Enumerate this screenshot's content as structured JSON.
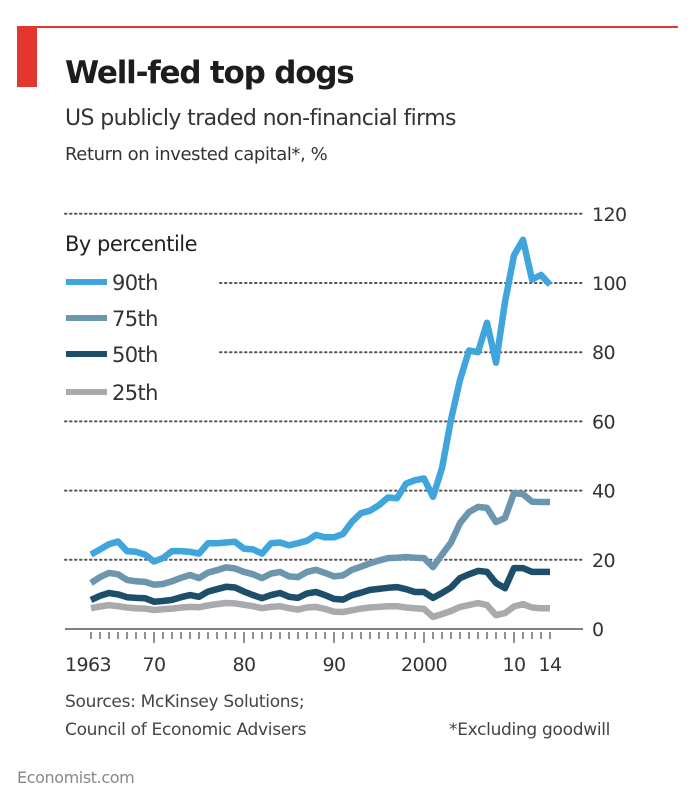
{
  "header": {
    "title": "Well-fed top dogs",
    "subtitle": "US publicly traded non-financial firms",
    "unit": "Return on invested capital*, %"
  },
  "footer": {
    "source_line1": "Sources: McKinsey Solutions;",
    "source_line2": "Council of Economic Advisers",
    "note": "*Excluding goodwill",
    "brand": "Economist.com"
  },
  "colors": {
    "accent": "#e3362e",
    "p90": "#3fa5dc",
    "p75": "#6b96ad",
    "p50": "#1d4e6a",
    "p25": "#a8aaad",
    "grid": "#555555"
  },
  "chart_data": {
    "type": "line",
    "title": "Well-fed top dogs",
    "subtitle": "US publicly traded non-financial firms",
    "ylabel": "Return on invested capital*, %",
    "xlabel": "",
    "xlim": [
      1963,
      2014
    ],
    "ylim": [
      0,
      120
    ],
    "y_ticks": [
      0,
      20,
      40,
      60,
      80,
      100,
      120
    ],
    "x_tick_labels": [
      {
        "year": 1963,
        "label": "1963"
      },
      {
        "year": 1970,
        "label": "70"
      },
      {
        "year": 1980,
        "label": "80"
      },
      {
        "year": 1990,
        "label": "90"
      },
      {
        "year": 2000,
        "label": "2000"
      },
      {
        "year": 2010,
        "label": "10"
      },
      {
        "year": 2014,
        "label": "14"
      }
    ],
    "grid": true,
    "y_axis_side": "right",
    "legend": {
      "title": "By percentile",
      "placement": "top-left"
    },
    "x": [
      1963,
      1964,
      1965,
      1966,
      1967,
      1968,
      1969,
      1970,
      1971,
      1972,
      1973,
      1974,
      1975,
      1976,
      1977,
      1978,
      1979,
      1980,
      1981,
      1982,
      1983,
      1984,
      1985,
      1986,
      1987,
      1988,
      1989,
      1990,
      1991,
      1992,
      1993,
      1994,
      1995,
      1996,
      1997,
      1998,
      1999,
      2000,
      2001,
      2002,
      2003,
      2004,
      2005,
      2006,
      2007,
      2008,
      2009,
      2010,
      2011,
      2012,
      2013,
      2014
    ],
    "series": [
      {
        "name": "90th",
        "color_key": "p90",
        "values": [
          21.5,
          23,
          24.5,
          25.3,
          22.5,
          22.3,
          21.5,
          19.5,
          20.5,
          22.5,
          22.5,
          22.3,
          21.8,
          24.8,
          24.8,
          25,
          25.2,
          23.2,
          23,
          21.8,
          24.8,
          25,
          24.2,
          24.8,
          25.5,
          27.2,
          26.5,
          26.5,
          27.5,
          31,
          33.5,
          34.2,
          35.8,
          38,
          37.8,
          42,
          43,
          43.5,
          38.2,
          46.5,
          60.5,
          72,
          80.5,
          80,
          88.5,
          77,
          94.5,
          108,
          112.5,
          101,
          102.3,
          99.5
        ]
      },
      {
        "name": "75th",
        "color_key": "p75",
        "values": [
          13.3,
          15,
          16.2,
          15.8,
          14.2,
          13.8,
          13.6,
          12.8,
          13,
          13.8,
          14.8,
          15.6,
          14.7,
          16.3,
          17,
          17.8,
          17.5,
          16.5,
          15.8,
          14.7,
          16,
          16.5,
          15.2,
          15,
          16.5,
          17.1,
          16.2,
          15.2,
          15.5,
          17.1,
          18,
          19,
          19.8,
          20.5,
          20.6,
          20.8,
          20.6,
          20.5,
          17.9,
          21.5,
          25,
          30.6,
          33.8,
          35.3,
          35,
          30.9,
          32.1,
          39.3,
          39,
          36.8,
          36.7,
          36.7
        ]
      },
      {
        "name": "50th",
        "color_key": "p50",
        "values": [
          8.4,
          9.6,
          10.4,
          10,
          9.2,
          9,
          8.9,
          7.9,
          8.1,
          8.4,
          9.2,
          9.8,
          9.3,
          10.8,
          11.5,
          12.2,
          12,
          10.8,
          9.8,
          8.9,
          9.8,
          10.4,
          9.3,
          9,
          10.3,
          10.7,
          9.8,
          8.7,
          8.5,
          9.8,
          10.5,
          11.3,
          11.6,
          11.9,
          12.1,
          11.5,
          10.7,
          10.7,
          9,
          10.4,
          12,
          14.7,
          15.8,
          16.8,
          16.5,
          13.3,
          11.8,
          17.6,
          17.6,
          16.5,
          16.5,
          16.5
        ]
      },
      {
        "name": "25th",
        "color_key": "p25",
        "values": [
          6,
          6.5,
          6.9,
          6.6,
          6.2,
          6,
          5.9,
          5.5,
          5.7,
          5.9,
          6.2,
          6.4,
          6.3,
          6.8,
          7.2,
          7.5,
          7.4,
          7,
          6.6,
          6,
          6.4,
          6.6,
          6,
          5.6,
          6.2,
          6.4,
          5.8,
          5,
          4.9,
          5.4,
          5.9,
          6.2,
          6.4,
          6.6,
          6.6,
          6.2,
          6,
          5.8,
          3.5,
          4.3,
          5.2,
          6.4,
          6.9,
          7.5,
          6.9,
          4,
          4.6,
          6.5,
          7.2,
          6.2,
          6,
          6
        ]
      }
    ]
  }
}
